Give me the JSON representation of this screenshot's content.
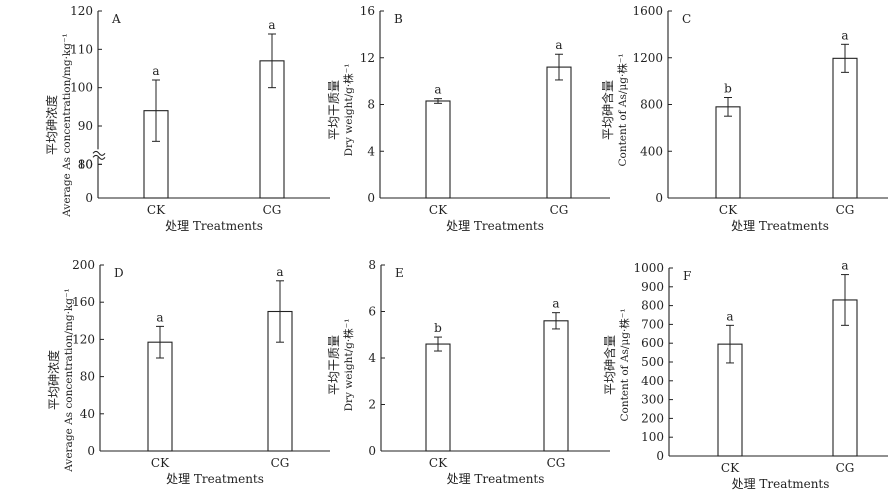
{
  "chart_data": [
    {
      "panel": "A",
      "type": "bar",
      "categories": [
        "CK",
        "CG"
      ],
      "values": [
        94,
        107
      ],
      "errors": [
        8,
        7
      ],
      "sig_letters": [
        "a",
        "a"
      ],
      "xlabel": "处理 Treatments",
      "ylabel_cn": "平均砷浓度",
      "ylabel_en": "Average As concentration/mg·kg⁻¹",
      "ylim": [
        0,
        120
      ],
      "axis_break": [
        10,
        80
      ],
      "yticks": [
        0,
        10,
        80,
        90,
        100,
        110,
        120
      ]
    },
    {
      "panel": "B",
      "type": "bar",
      "categories": [
        "CK",
        "CG"
      ],
      "values": [
        8.3,
        11.2
      ],
      "errors": [
        0.2,
        1.1
      ],
      "sig_letters": [
        "a",
        "a"
      ],
      "xlabel": "处理 Treatments",
      "ylabel_cn": "平均干质量",
      "ylabel_en": "Dry weight/g·株⁻¹",
      "ylim": [
        0,
        16
      ],
      "yticks": [
        0,
        4,
        8,
        12,
        16
      ]
    },
    {
      "panel": "C",
      "type": "bar",
      "categories": [
        "CK",
        "CG"
      ],
      "values": [
        780,
        1195
      ],
      "errors": [
        80,
        120
      ],
      "sig_letters": [
        "b",
        "a"
      ],
      "xlabel": "处理 Treatments",
      "ylabel_cn": "平均砷含量",
      "ylabel_en": "Content of As/μg·株⁻¹",
      "ylim": [
        0,
        1600
      ],
      "yticks": [
        0,
        400,
        800,
        1200,
        1600
      ]
    },
    {
      "panel": "D",
      "type": "bar",
      "categories": [
        "CK",
        "CG"
      ],
      "values": [
        117,
        150
      ],
      "errors": [
        17,
        33
      ],
      "sig_letters": [
        "a",
        "a"
      ],
      "xlabel": "处理 Treatments",
      "ylabel_cn": "平均砷浓度",
      "ylabel_en": "Average As concentration/mg·kg⁻¹",
      "ylim": [
        0,
        200
      ],
      "yticks": [
        0,
        40,
        80,
        120,
        160,
        200
      ]
    },
    {
      "panel": "E",
      "type": "bar",
      "categories": [
        "CK",
        "CG"
      ],
      "values": [
        4.6,
        5.6
      ],
      "errors": [
        0.3,
        0.35
      ],
      "sig_letters": [
        "b",
        "a"
      ],
      "xlabel": "处理 Treatments",
      "ylabel_cn": "平均干质量",
      "ylabel_en": "Dry weight/g·株⁻¹",
      "ylim": [
        0,
        8
      ],
      "yticks": [
        0,
        2,
        4,
        6,
        8
      ]
    },
    {
      "panel": "F",
      "type": "bar",
      "categories": [
        "CK",
        "CG"
      ],
      "values": [
        595,
        830
      ],
      "errors": [
        100,
        135
      ],
      "sig_letters": [
        "a",
        "a"
      ],
      "xlabel": "处理 Treatments",
      "ylabel_cn": "平均砷含量",
      "ylabel_en": "Content of As/μg·株⁻¹",
      "ylim": [
        0,
        1000
      ],
      "yticks": [
        0,
        100,
        200,
        300,
        400,
        500,
        600,
        700,
        800,
        900,
        1000
      ]
    }
  ]
}
